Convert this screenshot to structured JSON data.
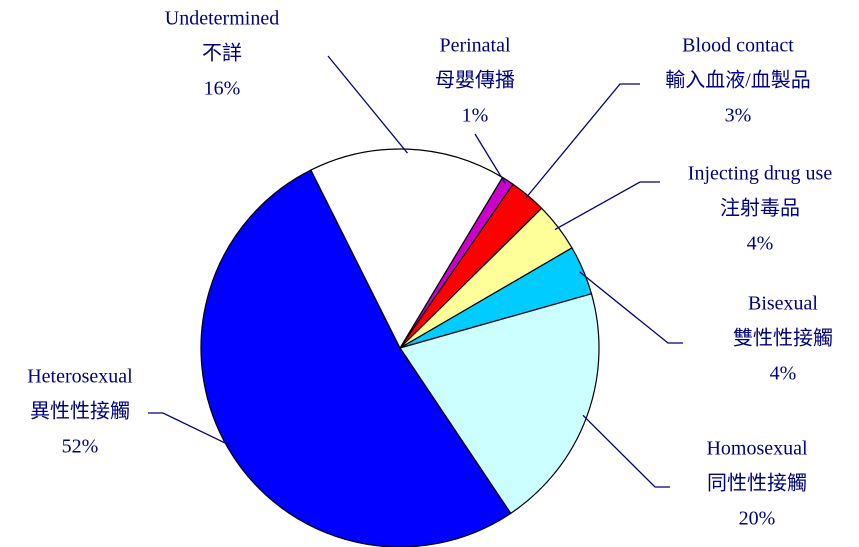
{
  "chart_data": {
    "type": "pie",
    "categories": [
      "Perinatal",
      "Blood contact",
      "Injecting drug use",
      "Bisexual",
      "Homosexual",
      "Heterosexual",
      "Undetermined"
    ],
    "categories_zh": [
      "母嬰傳播",
      "輸入血液/血製品",
      "注射毒品",
      "雙性性接觸",
      "同性性接觸",
      "異性性接觸",
      "不詳"
    ],
    "values": [
      1,
      3,
      4,
      4,
      20,
      52,
      16
    ],
    "value_labels": [
      "1%",
      "3%",
      "4%",
      "4%",
      "20%",
      "52%",
      "16%"
    ],
    "colors": [
      "#cc00cc",
      "#ff0000",
      "#ffff99",
      "#00ccff",
      "#ccffff",
      "#0000ff",
      "#ffffff"
    ]
  }
}
